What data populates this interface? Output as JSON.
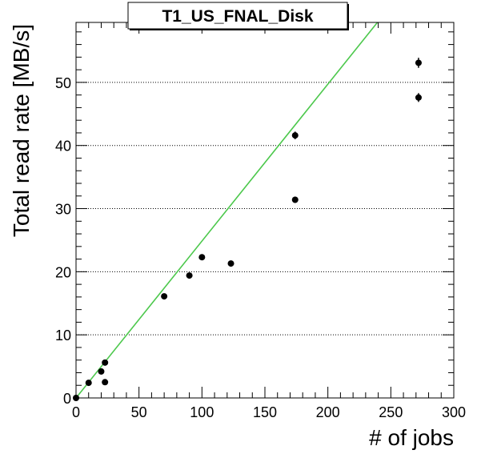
{
  "chart_data": {
    "type": "scatter",
    "title": "T1_US_FNAL_Disk",
    "xlabel": "# of jobs",
    "ylabel": "Total read rate [MB/s]",
    "xlim": [
      0,
      300
    ],
    "ylim": [
      0,
      59.5
    ],
    "x_ticks": [
      0,
      50,
      100,
      150,
      200,
      250,
      300
    ],
    "y_ticks": [
      0,
      10,
      20,
      30,
      40,
      50
    ],
    "grid": "horizontal dotted",
    "legend": "none",
    "series": [
      {
        "x": [
          0,
          10,
          20,
          23,
          23,
          70,
          90,
          100,
          123,
          174,
          174,
          272,
          272
        ],
        "y": [
          0,
          2.4,
          4.2,
          5.6,
          2.5,
          16.1,
          19.4,
          22.3,
          21.3,
          31.4,
          41.6,
          47.6,
          53.1
        ],
        "yerr": [
          0.2,
          0.3,
          0.3,
          0.3,
          0.3,
          0.4,
          0.4,
          0.4,
          0.4,
          0.5,
          0.6,
          0.7,
          0.8
        ],
        "color": "#000000"
      }
    ],
    "fit_line": {
      "slope": 0.2486,
      "intercept": 0,
      "color": "#4cc84c"
    }
  }
}
